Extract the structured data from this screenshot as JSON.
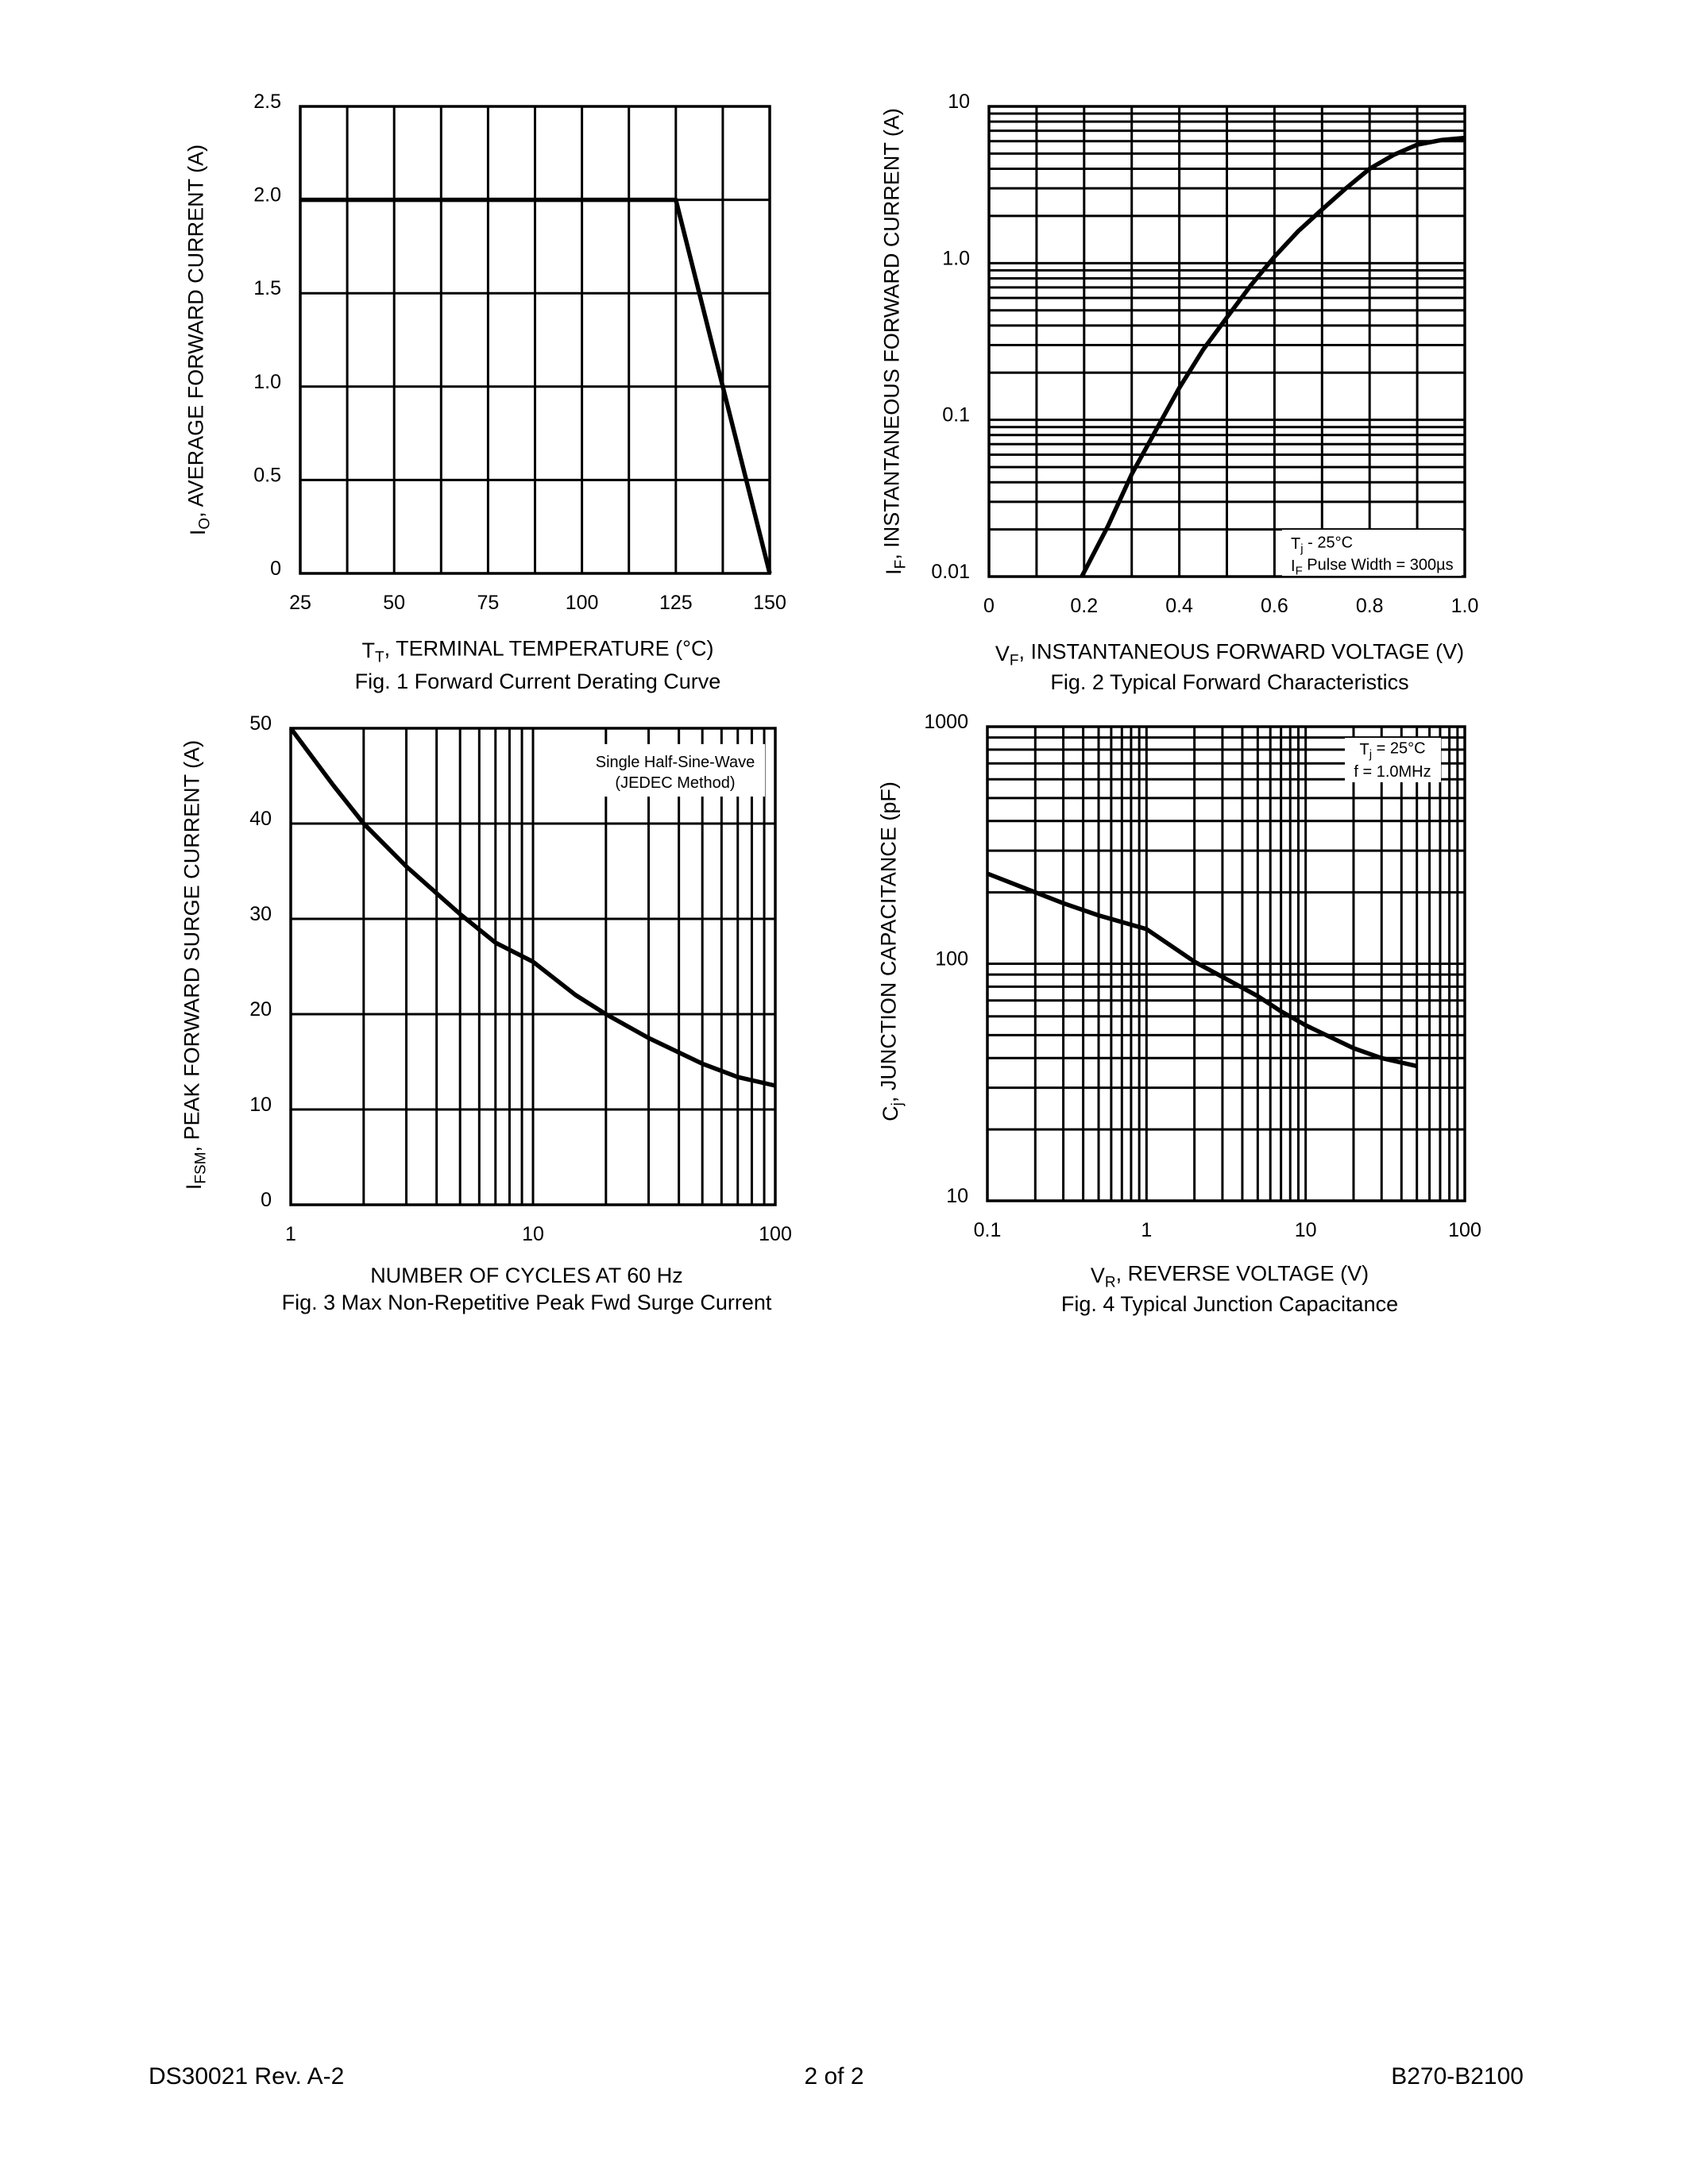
{
  "chart_data": [
    {
      "type": "line",
      "caption": "Fig. 1  Forward Current Derating Curve",
      "xlabel": {
        "main": "T",
        "sub": "T",
        "rest": ",  TERMINAL TEMPERATURE (°C)"
      },
      "ylabel": {
        "main": "I",
        "sub": "O",
        "rest": ", AVERAGE FORWARD CURRENT (A)"
      },
      "x_scale": "linear",
      "y_scale": "linear",
      "xlim": [
        25,
        150
      ],
      "ylim": [
        0,
        2.5
      ],
      "x_grid_step": 12.5,
      "y_grid_step": 0.5,
      "x_ticks": [
        "25",
        "50",
        "75",
        "100",
        "125",
        "150"
      ],
      "x_tick_values": [
        25,
        50,
        75,
        100,
        125,
        150
      ],
      "y_ticks": [
        "0",
        "0.5",
        "1.0",
        "1.5",
        "2.0",
        "2.5"
      ],
      "y_tick_values": [
        0,
        0.5,
        1.0,
        1.5,
        2.0,
        2.5
      ],
      "grid": true,
      "series": [
        {
          "x": [
            25,
            125,
            150
          ],
          "y": [
            2.0,
            2.0,
            0
          ]
        }
      ]
    },
    {
      "type": "line",
      "caption": "Fig. 2  Typical Forward Characteristics",
      "xlabel": {
        "main": "V",
        "sub": "F",
        "rest": ", INSTANTANEOUS FORWARD VOLTAGE (V)"
      },
      "ylabel": {
        "main": "I",
        "sub": "F",
        "rest": ", INSTANTANEOUS FORWARD CURRENT (A)"
      },
      "x_scale": "linear",
      "y_scale": "log",
      "xlim": [
        0,
        1.0
      ],
      "ylim": [
        0.01,
        10
      ],
      "x_grid_step": 0.1,
      "x_ticks": [
        "0",
        "0.2",
        "0.4",
        "0.6",
        "0.8",
        "1.0"
      ],
      "x_tick_values": [
        0,
        0.2,
        0.4,
        0.6,
        0.8,
        1.0
      ],
      "y_ticks": [
        "0.01",
        "0.1",
        "1.0",
        "10"
      ],
      "y_tick_values": [
        0.01,
        0.1,
        1,
        10
      ],
      "grid": true,
      "annotation": [
        {
          "main": "T",
          "sub": "j",
          "rest": " - 25°C"
        },
        {
          "main": "I",
          "sub": "F",
          "rest": " Pulse Width = 300µs"
        }
      ],
      "series": [
        {
          "x": [
            0.195,
            0.25,
            0.3,
            0.35,
            0.4,
            0.45,
            0.5,
            0.55,
            0.6,
            0.65,
            0.7,
            0.75,
            0.8,
            0.85,
            0.9,
            0.95,
            1.0
          ],
          "y": [
            0.01,
            0.021,
            0.045,
            0.085,
            0.16,
            0.28,
            0.45,
            0.72,
            1.1,
            1.6,
            2.2,
            3.0,
            4.0,
            4.9,
            5.7,
            6.1,
            6.3
          ]
        }
      ]
    },
    {
      "type": "line",
      "caption": "Fig. 3  Max Non-Repetitive Peak Fwd Surge Current",
      "xlabel": {
        "main": "NUMBER OF CYCLES AT 60 Hz",
        "sub": "",
        "rest": ""
      },
      "ylabel": {
        "main": "I",
        "sub": "FSM",
        "rest": ", PEAK FORWARD SURGE CURRENT (A)"
      },
      "x_scale": "log",
      "y_scale": "linear",
      "xlim": [
        1,
        100
      ],
      "ylim": [
        0,
        50
      ],
      "y_grid_step": 10,
      "x_ticks": [
        "1",
        "10",
        "100"
      ],
      "x_tick_values": [
        1,
        10,
        100
      ],
      "y_ticks": [
        "0",
        "10",
        "20",
        "30",
        "40",
        "50"
      ],
      "y_tick_values": [
        0,
        10,
        20,
        30,
        40,
        50
      ],
      "grid": true,
      "annotation": [
        {
          "main": "Single Half-Sine-Wave",
          "sub": "",
          "rest": ""
        },
        {
          "main": "(JEDEC Method)",
          "sub": "",
          "rest": ""
        }
      ],
      "series": [
        {
          "x": [
            1,
            1.5,
            2,
            3,
            5,
            7,
            10,
            15,
            20,
            30,
            50,
            70,
            100
          ],
          "y": [
            50,
            44,
            40,
            35.5,
            30.5,
            27.5,
            25.5,
            22,
            20,
            17.5,
            14.8,
            13.4,
            12.5
          ]
        }
      ]
    },
    {
      "type": "line",
      "caption": "Fig. 4  Typical Junction Capacitance",
      "xlabel": {
        "main": "V",
        "sub": "R",
        "rest": ", REVERSE VOLTAGE (V)"
      },
      "ylabel": {
        "main": "C",
        "sub": "j",
        "rest": ", JUNCTION CAPACITANCE (pF)"
      },
      "x_scale": "log",
      "y_scale": "log",
      "xlim": [
        0.1,
        100
      ],
      "ylim": [
        10,
        1000
      ],
      "x_ticks": [
        "0.1",
        "1",
        "10",
        "100"
      ],
      "x_tick_values": [
        0.1,
        1,
        10,
        100
      ],
      "y_ticks": [
        "10",
        "100",
        "1000"
      ],
      "y_tick_values": [
        10,
        100,
        1000
      ],
      "grid": true,
      "annotation": [
        {
          "main": "T",
          "sub": "j",
          "rest": " = 25°C"
        },
        {
          "main": "f = 1.0MHz",
          "sub": "",
          "rest": ""
        }
      ],
      "series": [
        {
          "x": [
            0.1,
            0.2,
            0.3,
            0.5,
            1,
            2,
            3,
            5,
            7,
            10,
            20,
            30,
            50
          ],
          "y": [
            240,
            200,
            180,
            160,
            140,
            102,
            88,
            73,
            63,
            55,
            44,
            40,
            37
          ]
        }
      ]
    }
  ],
  "footer": {
    "left": "DS30021 Rev. A-2",
    "center": "2 of 2",
    "right": "B270-B2100"
  }
}
